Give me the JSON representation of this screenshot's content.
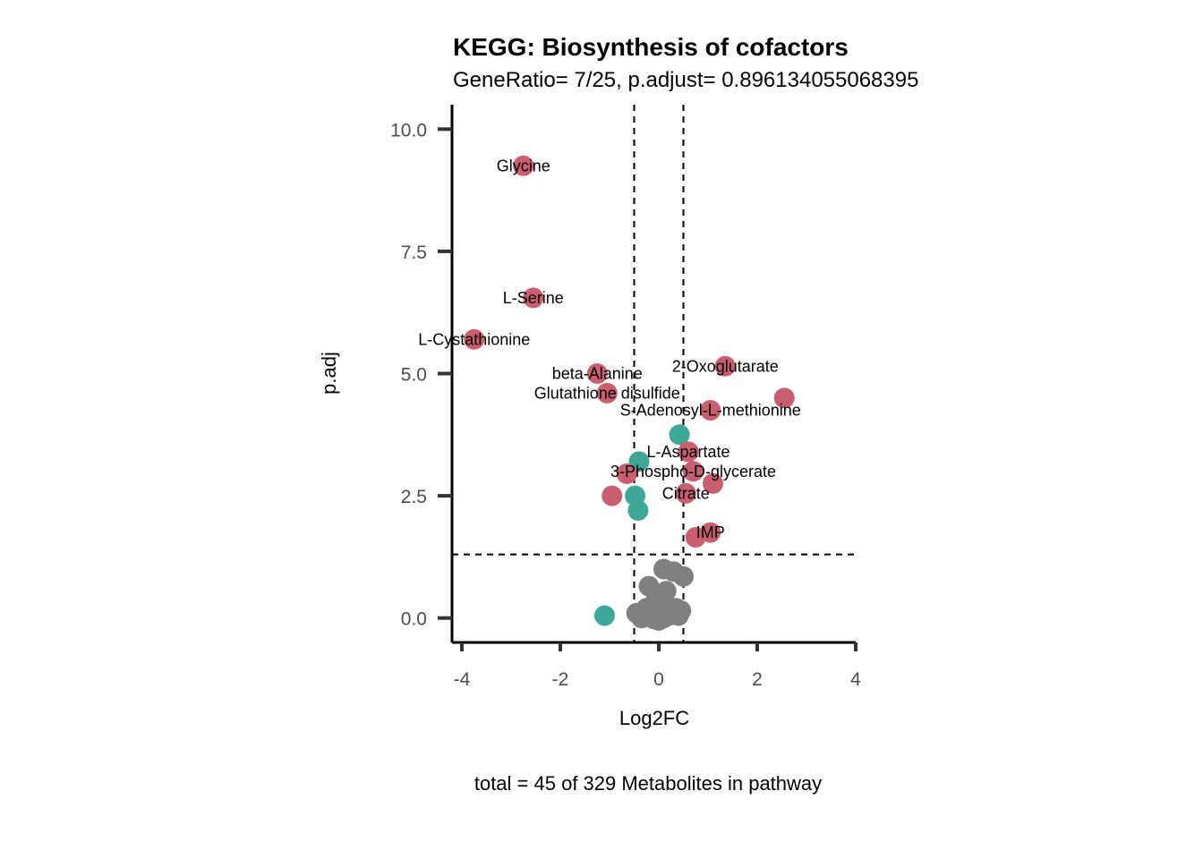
{
  "chart_data": {
    "type": "scatter",
    "title": "KEGG: Biosynthesis of cofactors",
    "subtitle": "GeneRatio= 7/25, p.adjust= 0.896134055068395",
    "xlabel": "Log2FC",
    "ylabel": "p.adj",
    "caption": "total = 45 of 329 Metabolites in pathway",
    "xlim": [
      -4.2,
      4.0
    ],
    "ylim": [
      -0.5,
      10.5
    ],
    "x_ticks": [
      -4,
      -2,
      0,
      2,
      4
    ],
    "x_tick_labels": [
      "-4",
      "-2",
      "0",
      "2",
      "4"
    ],
    "y_ticks": [
      0,
      2.5,
      5,
      7.5,
      10
    ],
    "y_tick_labels": [
      "0.0",
      "2.5",
      "5.0",
      "7.5",
      "10.0"
    ],
    "thresholds": {
      "log2fc": [
        -0.5,
        0.5
      ],
      "p_adj": 1.3
    },
    "colors": {
      "up": "#c95e6f",
      "down": "#3fa797",
      "ns": "#808080",
      "threshold_line": "#000000",
      "axis": "#000000",
      "tick": "#333333"
    },
    "series": [
      {
        "name": "up",
        "points": [
          {
            "x": -2.75,
            "y": 9.25
          },
          {
            "x": -2.55,
            "y": 6.55
          },
          {
            "x": -3.75,
            "y": 5.7
          },
          {
            "x": -1.25,
            "y": 5.0
          },
          {
            "x": -1.05,
            "y": 4.6
          },
          {
            "x": 1.35,
            "y": 5.15
          },
          {
            "x": 2.55,
            "y": 4.5
          },
          {
            "x": 1.05,
            "y": 4.25
          },
          {
            "x": 0.6,
            "y": 3.4
          },
          {
            "x": 0.7,
            "y": 3.0
          },
          {
            "x": -0.65,
            "y": 2.95
          },
          {
            "x": 1.1,
            "y": 2.75
          },
          {
            "x": 0.55,
            "y": 2.55
          },
          {
            "x": -0.95,
            "y": 2.5
          },
          {
            "x": 1.05,
            "y": 1.75
          },
          {
            "x": 0.75,
            "y": 1.65
          }
        ]
      },
      {
        "name": "down",
        "points": [
          {
            "x": 0.42,
            "y": 3.75
          },
          {
            "x": -0.4,
            "y": 3.2
          },
          {
            "x": -0.48,
            "y": 2.5
          },
          {
            "x": -0.42,
            "y": 2.2
          },
          {
            "x": -1.1,
            "y": 0.05
          }
        ]
      },
      {
        "name": "ns",
        "points": [
          {
            "x": 0.1,
            "y": 1.0
          },
          {
            "x": 0.3,
            "y": 0.95
          },
          {
            "x": 0.5,
            "y": 0.85
          },
          {
            "x": -0.2,
            "y": 0.65
          },
          {
            "x": 0.15,
            "y": 0.55
          },
          {
            "x": -0.05,
            "y": 0.45
          },
          {
            "x": 0.45,
            "y": 0.15
          },
          {
            "x": -0.45,
            "y": 0.1
          },
          {
            "x": -0.3,
            "y": 0.05
          },
          {
            "x": -0.15,
            "y": 0.1
          },
          {
            "x": 0.0,
            "y": 0.05
          },
          {
            "x": 0.1,
            "y": 0.0
          },
          {
            "x": 0.2,
            "y": 0.05
          },
          {
            "x": -0.1,
            "y": -0.02
          },
          {
            "x": 0.3,
            "y": 0.08
          },
          {
            "x": -0.25,
            "y": 0.2
          },
          {
            "x": 0.05,
            "y": 0.25
          },
          {
            "x": 0.25,
            "y": 0.1
          },
          {
            "x": -0.35,
            "y": 0.0
          },
          {
            "x": 0.35,
            "y": 0.2
          },
          {
            "x": 0.0,
            "y": -0.05
          },
          {
            "x": 0.15,
            "y": 0.15
          },
          {
            "x": -0.05,
            "y": 0.3
          },
          {
            "x": 0.4,
            "y": 0.05
          }
        ]
      }
    ],
    "annotations": [
      {
        "text": "Glycine",
        "x": -2.75,
        "y": 9.25
      },
      {
        "text": "L-Serine",
        "x": -2.55,
        "y": 6.55
      },
      {
        "text": "L-Cystathionine",
        "x": -3.75,
        "y": 5.7
      },
      {
        "text": "beta-Alanine",
        "x": -1.25,
        "y": 5.0
      },
      {
        "text": "2-Oxoglutarate",
        "x": 1.35,
        "y": 5.15
      },
      {
        "text": "Glutathione disulfide",
        "x": -1.05,
        "y": 4.6
      },
      {
        "text": "S-Adenosyl-L-methionine",
        "x": 1.05,
        "y": 4.25
      },
      {
        "text": "L-Aspartate",
        "x": 0.6,
        "y": 3.4
      },
      {
        "text": "3-Phospho-D-glycerate",
        "x": 0.7,
        "y": 3.0
      },
      {
        "text": "Citrate",
        "x": 0.55,
        "y": 2.55
      },
      {
        "text": "IMP",
        "x": 1.05,
        "y": 1.75
      }
    ]
  }
}
